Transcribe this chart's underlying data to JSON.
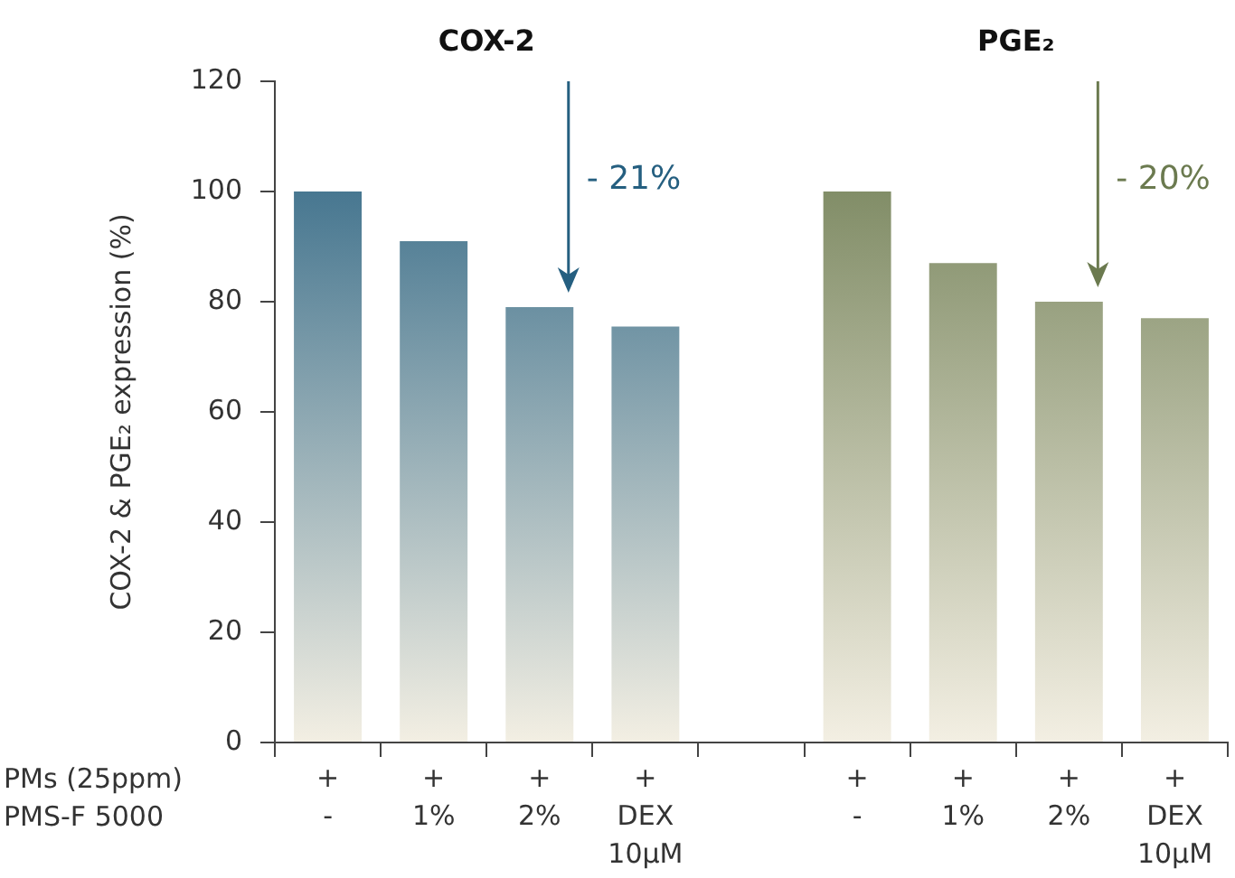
{
  "chart_data": {
    "type": "bar",
    "ylabel": "COX-2 & PGE₂ expression (%)",
    "categories": [
      "+\n-",
      "+\n1%",
      "+\n2%",
      "+\nDEX\n10μM",
      null,
      "+\n-",
      "+\n1%",
      "+\n2%",
      "+\nDEX\n10μM"
    ],
    "series": [
      {
        "color": "#255f80",
        "values": [
          100,
          91,
          79,
          75.5,
          null,
          null,
          null,
          null,
          null
        ]
      },
      {
        "color": "#6b7a4f",
        "values": [
          null,
          null,
          null,
          null,
          null,
          100,
          87,
          80,
          77
        ]
      }
    ],
    "ylim": [
      0,
      120
    ],
    "yticks": [
      0,
      20,
      40,
      60,
      80,
      100,
      120
    ],
    "grid": false,
    "legend": false,
    "annotations": [
      "COX-2",
      "PGE₂",
      "- 21%",
      "- 20%",
      "PMs (25ppm)",
      "PMS-F 5000"
    ]
  }
}
